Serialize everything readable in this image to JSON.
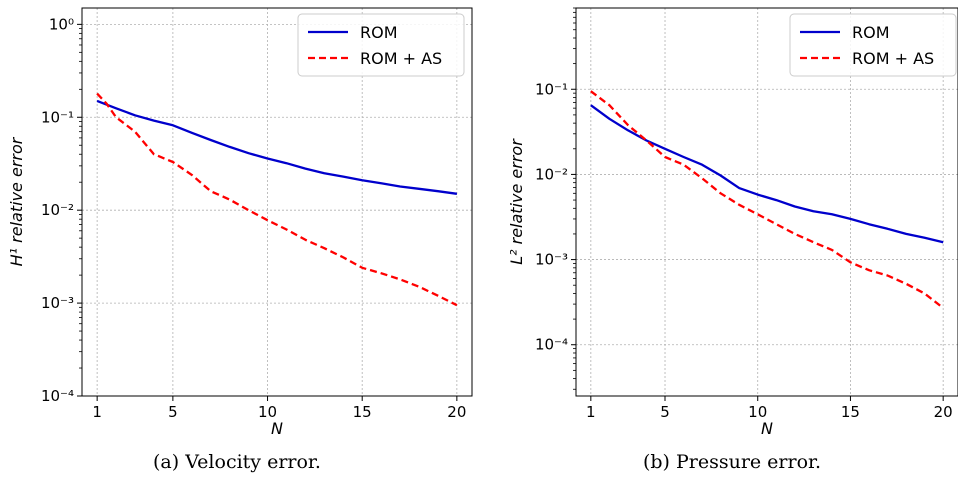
{
  "chart_data": [
    {
      "type": "line",
      "caption": "(a) Velocity error.",
      "xlabel": "N",
      "ylabel": "H¹ relative error",
      "xlim": [
        0.2,
        20.8
      ],
      "ylim": [
        0.0001,
        1.5
      ],
      "yscale": "log",
      "xticks": [
        1,
        5,
        10,
        15,
        20
      ],
      "yticks": [
        {
          "value": 0.0001,
          "label": "10⁻⁴"
        },
        {
          "value": 0.001,
          "label": "10⁻³"
        },
        {
          "value": 0.01,
          "label": "10⁻²"
        },
        {
          "value": 0.1,
          "label": "10⁻¹"
        },
        {
          "value": 1,
          "label": "10⁰"
        }
      ],
      "grid": true,
      "legend": "top-right",
      "series": [
        {
          "name": "ROM",
          "color": "#0000cc",
          "style": "solid",
          "x": [
            1,
            2,
            3,
            4,
            5,
            6,
            7,
            8,
            9,
            10,
            11,
            12,
            13,
            14,
            15,
            16,
            17,
            18,
            19,
            20
          ],
          "y": [
            0.15,
            0.125,
            0.105,
            0.092,
            0.082,
            0.068,
            0.057,
            0.048,
            0.041,
            0.036,
            0.032,
            0.028,
            0.025,
            0.023,
            0.021,
            0.0195,
            0.018,
            0.017,
            0.016,
            0.015
          ]
        },
        {
          "name": "ROM + AS",
          "color": "#ff0000",
          "style": "dashed",
          "x": [
            1,
            1.5,
            2,
            3,
            4,
            5,
            6,
            7,
            8,
            9,
            10,
            11,
            12,
            13,
            14,
            15,
            16,
            17,
            18,
            19,
            20
          ],
          "y": [
            0.18,
            0.14,
            0.1,
            0.07,
            0.04,
            0.033,
            0.024,
            0.016,
            0.013,
            0.01,
            0.0078,
            0.0062,
            0.0048,
            0.0039,
            0.0031,
            0.0024,
            0.0021,
            0.0018,
            0.0015,
            0.0012,
            0.00095
          ]
        }
      ]
    },
    {
      "type": "line",
      "caption": "(b) Pressure error.",
      "xlabel": "N",
      "ylabel": "L² relative error",
      "xlim": [
        0.2,
        20.8
      ],
      "ylim": [
        2.5e-05,
        0.9
      ],
      "yscale": "log",
      "xticks": [
        1,
        5,
        10,
        15,
        20
      ],
      "yticks": [
        {
          "value": 0.0001,
          "label": "10⁻⁴"
        },
        {
          "value": 0.001,
          "label": "10⁻³"
        },
        {
          "value": 0.01,
          "label": "10⁻²"
        },
        {
          "value": 0.1,
          "label": "10⁻¹"
        }
      ],
      "grid": true,
      "legend": "top-right",
      "series": [
        {
          "name": "ROM",
          "color": "#0000cc",
          "style": "solid",
          "x": [
            1,
            2,
            3,
            4,
            5,
            6,
            7,
            8,
            9,
            10,
            11,
            12,
            13,
            14,
            15,
            16,
            17,
            18,
            19,
            20
          ],
          "y": [
            0.065,
            0.045,
            0.033,
            0.025,
            0.02,
            0.016,
            0.013,
            0.0097,
            0.0069,
            0.0058,
            0.005,
            0.0042,
            0.0037,
            0.0034,
            0.003,
            0.0026,
            0.0023,
            0.002,
            0.0018,
            0.0016
          ]
        },
        {
          "name": "ROM + AS",
          "color": "#ff0000",
          "style": "dashed",
          "x": [
            1,
            2,
            3,
            4,
            5,
            6,
            7,
            8,
            9,
            10,
            11,
            12,
            13,
            14,
            15,
            16,
            17,
            18,
            19,
            20
          ],
          "y": [
            0.095,
            0.065,
            0.038,
            0.025,
            0.016,
            0.013,
            0.009,
            0.006,
            0.0044,
            0.0034,
            0.0026,
            0.002,
            0.0016,
            0.0013,
            0.00093,
            0.00075,
            0.00065,
            0.00052,
            0.0004,
            0.00027
          ]
        }
      ]
    }
  ]
}
